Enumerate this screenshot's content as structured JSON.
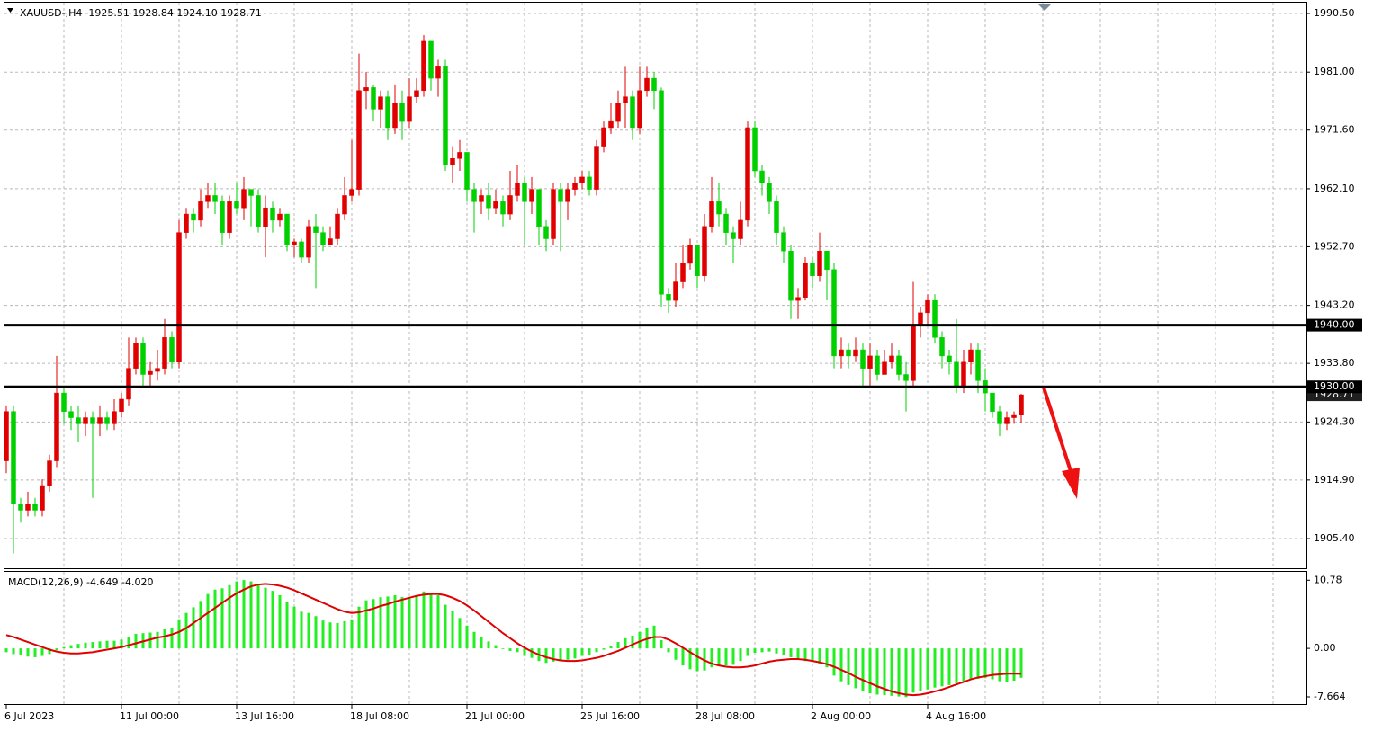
{
  "chart_data": [
    {
      "type": "candlestick",
      "title": "XAUUSD-,H4  1925.51 1928.84 1924.10 1928.71",
      "categories": [
        "6 Jul 2023",
        null,
        null,
        null,
        null,
        null,
        null,
        null,
        null,
        null,
        null,
        null,
        null,
        null,
        null,
        null,
        "11 Jul 00:00",
        null,
        null,
        null,
        null,
        null,
        null,
        null,
        null,
        null,
        null,
        null,
        null,
        null,
        null,
        null,
        "13 Jul 16:00",
        null,
        null,
        null,
        null,
        null,
        null,
        null,
        null,
        null,
        null,
        null,
        null,
        null,
        null,
        null,
        "18 Jul 08:00",
        null,
        null,
        null,
        null,
        null,
        null,
        null,
        null,
        null,
        null,
        null,
        null,
        null,
        null,
        null,
        "21 Jul 00:00",
        null,
        null,
        null,
        null,
        null,
        null,
        null,
        null,
        null,
        null,
        null,
        null,
        null,
        null,
        null,
        "25 Jul 16:00",
        null,
        null,
        null,
        null,
        null,
        null,
        null,
        null,
        null,
        null,
        null,
        null,
        null,
        null,
        null,
        "28 Jul 08:00",
        null,
        null,
        null,
        null,
        null,
        null,
        null,
        null,
        null,
        null,
        null,
        null,
        null,
        null,
        null,
        "2 Aug 00:00",
        null,
        null,
        null,
        null,
        null,
        null,
        null,
        null,
        null,
        null,
        null,
        null,
        null,
        null,
        null,
        "4 Aug 16:00",
        null,
        null,
        null,
        null,
        null,
        null,
        null,
        null,
        null,
        null,
        null,
        null,
        null
      ],
      "open": [
        1918,
        1926,
        1911,
        1910,
        1911,
        1910,
        1914,
        1918,
        1929,
        1926,
        1925,
        1924,
        1925,
        1924,
        1925,
        1924,
        1926,
        1928,
        1933,
        1937,
        1932,
        1932.5,
        1933,
        1938,
        1934,
        1955,
        1958,
        1957,
        1960,
        1961,
        1960,
        1955,
        1960,
        1959,
        1962,
        1961,
        1956,
        1959,
        1957,
        1958,
        1953,
        1953.5,
        1951,
        1956,
        1955,
        1953,
        1954,
        1958,
        1961,
        1962,
        1978,
        1978.5,
        1975,
        1977,
        1972,
        1976,
        1973,
        1977,
        1978,
        1986,
        1980,
        1982,
        1966,
        1967,
        1968,
        1962,
        1960,
        1961,
        1959,
        1960,
        1958,
        1961,
        1963,
        1960,
        1962,
        1956,
        1954,
        1962,
        1960,
        1962,
        1963,
        1964,
        1962,
        1969,
        1972,
        1973,
        1976,
        1977,
        1972,
        1978,
        1980,
        1978,
        1945,
        1944,
        1947,
        1950,
        1953,
        1948,
        1956,
        1960,
        1958,
        1955,
        1954,
        1957,
        1972,
        1965,
        1963,
        1960,
        1955,
        1952,
        1944,
        1944.5,
        1950,
        1948,
        1952,
        1949,
        1935,
        1936,
        1935,
        1936,
        1933,
        1935,
        1932,
        1934,
        1935,
        1932,
        1931,
        1940,
        1942,
        1944,
        1938,
        1935,
        1934,
        1930,
        1934,
        1936,
        1931,
        1929,
        1926,
        1924,
        1925,
        1925.51
      ],
      "high": [
        1927,
        1927,
        1912,
        1913,
        1912,
        1915,
        1919,
        1935,
        1930,
        1927,
        1927,
        1926,
        1926,
        1927,
        1926,
        1928,
        1929,
        1938,
        1938,
        1938,
        1934,
        1936,
        1941,
        1939,
        1957,
        1959,
        1959,
        1962,
        1963,
        1963,
        1961,
        1961,
        1963,
        1964,
        1962,
        1962,
        1961,
        1960,
        1959,
        1958,
        1954,
        1954,
        1957,
        1958,
        1956,
        1956,
        1959,
        1964,
        1970,
        1984,
        1981,
        1979,
        1978,
        1978,
        1979,
        1978,
        1980,
        1980,
        1987,
        1986,
        1983,
        1983,
        1969,
        1970,
        1968,
        1963,
        1962,
        1963,
        1962,
        1961,
        1965,
        1966,
        1964,
        1964,
        1962,
        1957,
        1963,
        1963,
        1963,
        1964,
        1965,
        1965,
        1970,
        1973,
        1976,
        1978,
        1982,
        1978,
        1982,
        1982,
        1981,
        1978.5,
        1946,
        1950,
        1953,
        1954,
        1953,
        1958,
        1964,
        1963,
        1959,
        1956,
        1960,
        1973,
        1973,
        1966,
        1964,
        1961,
        1956,
        1953,
        1946,
        1951,
        1951,
        1955,
        1952,
        1950,
        1938,
        1937,
        1938,
        1937,
        1937,
        1936,
        1936,
        1937,
        1936,
        1934,
        1947,
        1943,
        1945,
        1945,
        1939,
        1936,
        1941,
        1936,
        1937,
        1937,
        1933,
        1929,
        1927,
        1926,
        1926,
        1928.84
      ],
      "low": [
        1916,
        1903,
        1908,
        1909,
        1909,
        1909,
        1913,
        1917,
        1924,
        1923,
        1921,
        1922,
        1912,
        1922,
        1923,
        1923,
        1925,
        1927,
        1932,
        1930,
        1930,
        1931,
        1932,
        1933,
        1933,
        1954,
        1955,
        1956,
        1959,
        1958,
        1953,
        1954,
        1958,
        1957,
        1956,
        1955,
        1951,
        1955,
        1956,
        1952,
        1951,
        1950,
        1950,
        1946,
        1952,
        1953,
        1953,
        1957,
        1960,
        1961,
        1975,
        1973,
        1972,
        1970,
        1971,
        1970,
        1972,
        1976,
        1977,
        1978,
        1977,
        1965,
        1963,
        1965,
        1960,
        1955,
        1958,
        1957,
        1958,
        1956,
        1957,
        1960,
        1953,
        1958,
        1953,
        1952,
        1953,
        1952,
        1957,
        1961,
        1962,
        1961,
        1961,
        1968,
        1971,
        1972,
        1972,
        1970,
        1971,
        1977,
        1975,
        1943,
        1942,
        1943,
        1946,
        1949,
        1946,
        1947,
        1955,
        1956,
        1953,
        1950,
        1953,
        1956,
        1964,
        1961,
        1958,
        1953,
        1950,
        1941,
        1941,
        1944,
        1946,
        1947,
        1944,
        1933,
        1933,
        1933,
        1934,
        1930,
        1930,
        1931,
        1932,
        1933,
        1931,
        1926,
        1930,
        1938,
        1940,
        1937,
        1933,
        1932,
        1929,
        1929,
        1932,
        1929,
        1926,
        1925,
        1922,
        1923,
        1924,
        1924.1
      ],
      "close": [
        1926,
        1911,
        1910,
        1911,
        1910,
        1914,
        1918,
        1929,
        1926,
        1925,
        1924,
        1925,
        1924,
        1925,
        1924,
        1926,
        1928,
        1933,
        1937,
        1932,
        1932.5,
        1933,
        1938,
        1934,
        1955,
        1958,
        1957,
        1960,
        1961,
        1960,
        1955,
        1960,
        1959,
        1962,
        1961,
        1956,
        1959,
        1957,
        1958,
        1953,
        1953.5,
        1951,
        1956,
        1955,
        1953,
        1954,
        1958,
        1961,
        1962,
        1978,
        1978.5,
        1975,
        1977,
        1972,
        1976,
        1973,
        1977,
        1978,
        1986,
        1980,
        1982,
        1966,
        1967,
        1968,
        1962,
        1960,
        1961,
        1959,
        1960,
        1958,
        1961,
        1963,
        1960,
        1962,
        1956,
        1954,
        1962,
        1960,
        1962,
        1963,
        1964,
        1962,
        1969,
        1972,
        1973,
        1976,
        1977,
        1972,
        1978,
        1980,
        1978,
        1945,
        1944,
        1947,
        1950,
        1953,
        1948,
        1956,
        1960,
        1958,
        1955,
        1954,
        1957,
        1972,
        1965,
        1963,
        1960,
        1955,
        1952,
        1944,
        1944.5,
        1950,
        1948,
        1952,
        1949,
        1935,
        1936,
        1935,
        1936,
        1933,
        1935,
        1932,
        1934,
        1935,
        1932,
        1931,
        1940,
        1942,
        1944,
        1938,
        1935,
        1934,
        1930,
        1934,
        1936,
        1931,
        1929,
        1926,
        1924,
        1925,
        1925.51,
        1928.71
      ],
      "up_color": "#e00000",
      "down_color": "#00d000",
      "ylim": [
        1900.6,
        1992.25
      ],
      "yticks": [
        {
          "value": 1990.5,
          "label": "1990.50"
        },
        {
          "value": 1981,
          "label": "1981.00"
        },
        {
          "value": 1971.6,
          "label": "1971.60"
        },
        {
          "value": 1962.1,
          "label": "1962.10"
        },
        {
          "value": 1952.7,
          "label": "1952.70"
        },
        {
          "value": 1943.2,
          "label": "1943.20"
        },
        {
          "value": 1933.8,
          "label": "1933.80"
        },
        {
          "value": 1924.3,
          "label": "1924.30"
        },
        {
          "value": 1914.9,
          "label": "1914.90"
        },
        {
          "value": 1905.4,
          "label": "1905.40"
        }
      ],
      "hlines": [
        {
          "value": 1940,
          "label": "1940.00"
        },
        {
          "value": 1930,
          "label": "1930.00"
        }
      ],
      "grid": true
    },
    {
      "type": "macd",
      "title": "MACD(12,26,9) -4.649 -4.020",
      "series": [
        {
          "type": "bar",
          "color": "#22ee22",
          "values": [
            -0.6,
            -0.9,
            -1.1,
            -1.3,
            -1.4,
            -1.2,
            -0.9,
            -0.3,
            0.2,
            0.5,
            0.7,
            0.9,
            1.0,
            1.1,
            1.2,
            1.2,
            1.4,
            1.8,
            2.3,
            2.4,
            2.5,
            2.6,
            3.0,
            3.3,
            4.6,
            5.6,
            6.5,
            7.5,
            8.6,
            9.3,
            9.5,
            10.0,
            10.6,
            10.8,
            10.6,
            10.2,
            9.6,
            9.1,
            8.4,
            7.3,
            6.6,
            5.8,
            5.6,
            5.1,
            4.4,
            4.1,
            4.0,
            4.3,
            4.6,
            6.6,
            7.6,
            7.8,
            8.1,
            8.2,
            8.4,
            8.1,
            7.9,
            8.3,
            9.0,
            8.7,
            8.4,
            6.9,
            5.9,
            4.8,
            3.6,
            2.6,
            1.8,
            1.1,
            0.5,
            -0.1,
            -0.4,
            -0.6,
            -1.2,
            -1.5,
            -2.0,
            -2.3,
            -2.1,
            -2.0,
            -1.8,
            -1.6,
            -1.2,
            -1.0,
            -0.6,
            -0.2,
            0.4,
            1.0,
            1.6,
            2.0,
            2.6,
            3.3,
            3.6,
            1.3,
            -0.6,
            -1.8,
            -2.7,
            -3.3,
            -3.6,
            -3.5,
            -3.0,
            -2.8,
            -2.7,
            -2.6,
            -2.0,
            -1.2,
            -0.7,
            -0.6,
            -0.5,
            -0.8,
            -1.0,
            -1.4,
            -1.8,
            -2.0,
            -2.1,
            -2.4,
            -3.0,
            -4.3,
            -5.2,
            -5.8,
            -6.3,
            -6.8,
            -7.1,
            -7.3,
            -7.4,
            -7.5,
            -7.6,
            -7.7,
            -7.0,
            -6.7,
            -6.5,
            -6.2,
            -6.0,
            -5.8,
            -5.5,
            -5.2,
            -4.9,
            -4.8,
            -4.7,
            -4.9,
            -5.2,
            -5.3,
            -5.1,
            -4.649
          ]
        },
        {
          "type": "line",
          "color": "#e00000",
          "values": [
            2.1,
            1.8,
            1.4,
            1.0,
            0.6,
            0.2,
            -0.2,
            -0.5,
            -0.7,
            -0.8,
            -0.8,
            -0.7,
            -0.6,
            -0.4,
            -0.2,
            0.0,
            0.2,
            0.5,
            0.8,
            1.1,
            1.4,
            1.7,
            1.9,
            2.2,
            2.6,
            3.2,
            4.0,
            4.8,
            5.6,
            6.4,
            7.2,
            8.0,
            8.7,
            9.3,
            9.8,
            10.1,
            10.2,
            10.1,
            9.9,
            9.6,
            9.2,
            8.7,
            8.2,
            7.7,
            7.2,
            6.7,
            6.2,
            5.8,
            5.6,
            5.7,
            6.0,
            6.3,
            6.7,
            7.0,
            7.4,
            7.7,
            8.0,
            8.3,
            8.5,
            8.6,
            8.6,
            8.4,
            8.0,
            7.5,
            6.8,
            6.0,
            5.1,
            4.2,
            3.3,
            2.4,
            1.6,
            0.8,
            0.1,
            -0.5,
            -1.0,
            -1.4,
            -1.7,
            -1.9,
            -2.0,
            -2.0,
            -1.9,
            -1.7,
            -1.5,
            -1.2,
            -0.8,
            -0.4,
            0.1,
            0.6,
            1.1,
            1.5,
            1.8,
            1.8,
            1.4,
            0.8,
            0.1,
            -0.6,
            -1.3,
            -1.9,
            -2.4,
            -2.7,
            -2.9,
            -3.0,
            -3.0,
            -2.9,
            -2.7,
            -2.4,
            -2.1,
            -1.9,
            -1.8,
            -1.7,
            -1.7,
            -1.8,
            -2.0,
            -2.2,
            -2.5,
            -2.9,
            -3.4,
            -3.9,
            -4.5,
            -5.0,
            -5.5,
            -6.0,
            -6.4,
            -6.8,
            -7.1,
            -7.3,
            -7.4,
            -7.3,
            -7.1,
            -6.8,
            -6.5,
            -6.1,
            -5.7,
            -5.3,
            -4.9,
            -4.6,
            -4.4,
            -4.2,
            -4.1,
            -4.0,
            -4.0,
            -4.02
          ]
        }
      ],
      "ylim": [
        -8.8,
        12.1
      ],
      "yticks": [
        10.78,
        {
          "value": 0,
          "label": "0.00"
        },
        -7.664
      ]
    }
  ]
}
